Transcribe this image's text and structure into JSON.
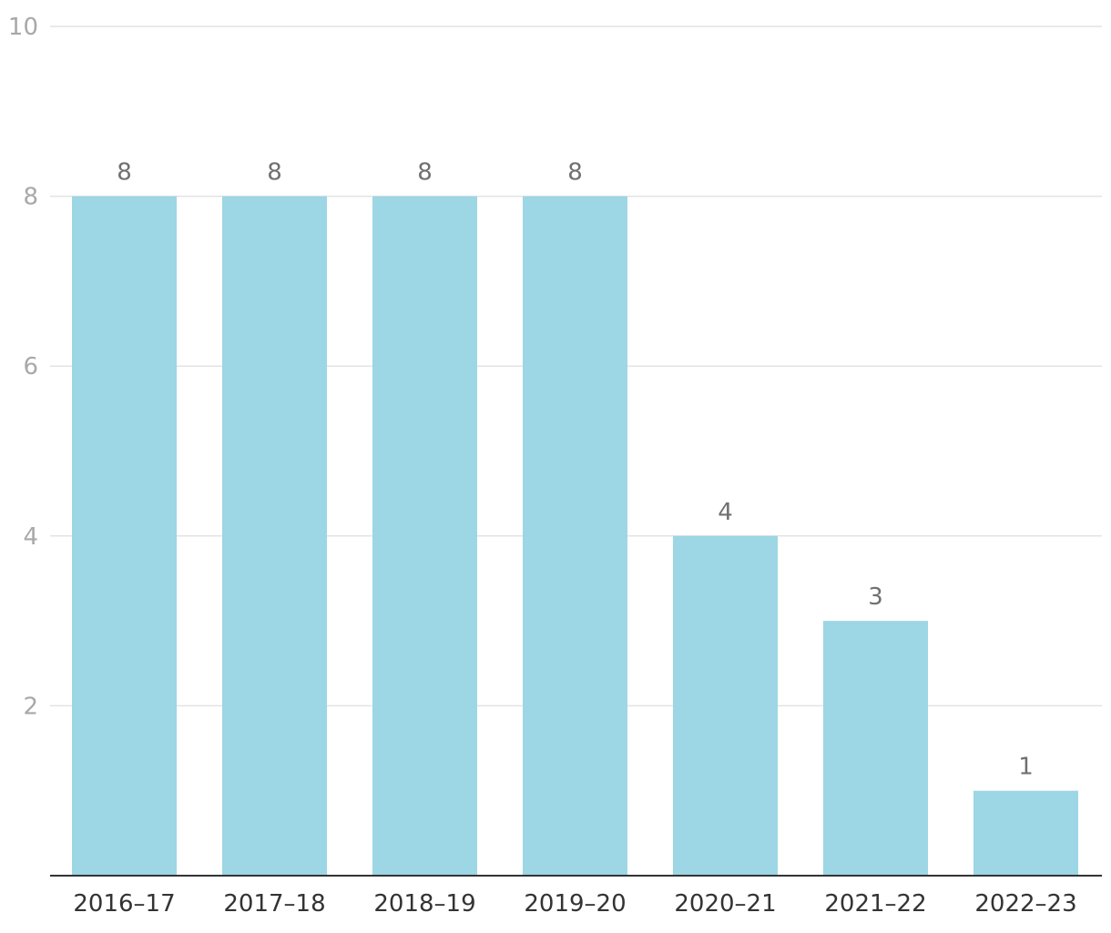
{
  "chart_data": {
    "type": "bar",
    "title": "",
    "xlabel": "",
    "ylabel": "",
    "categories": [
      "2016–17",
      "2017–18",
      "2018–19",
      "2019–20",
      "2020–21",
      "2021–22",
      "2022–23"
    ],
    "values": [
      8,
      8,
      8,
      8,
      4,
      3,
      1
    ],
    "data_labels": [
      "8",
      "8",
      "8",
      "8",
      "4",
      "3",
      "1"
    ],
    "ylim": [
      0,
      10
    ],
    "yticks": [
      2,
      4,
      6,
      8,
      10
    ],
    "ytick_labels": [
      "2",
      "4",
      "6",
      "8",
      "10"
    ],
    "grid": true,
    "legend": "none",
    "colors": {
      "bar": "#9dd6e4",
      "grid": "#e3e3e3",
      "axis": "#333333",
      "tick_label": "#a8a8a8",
      "category_label": "#333333",
      "data_label": "#707070"
    }
  }
}
